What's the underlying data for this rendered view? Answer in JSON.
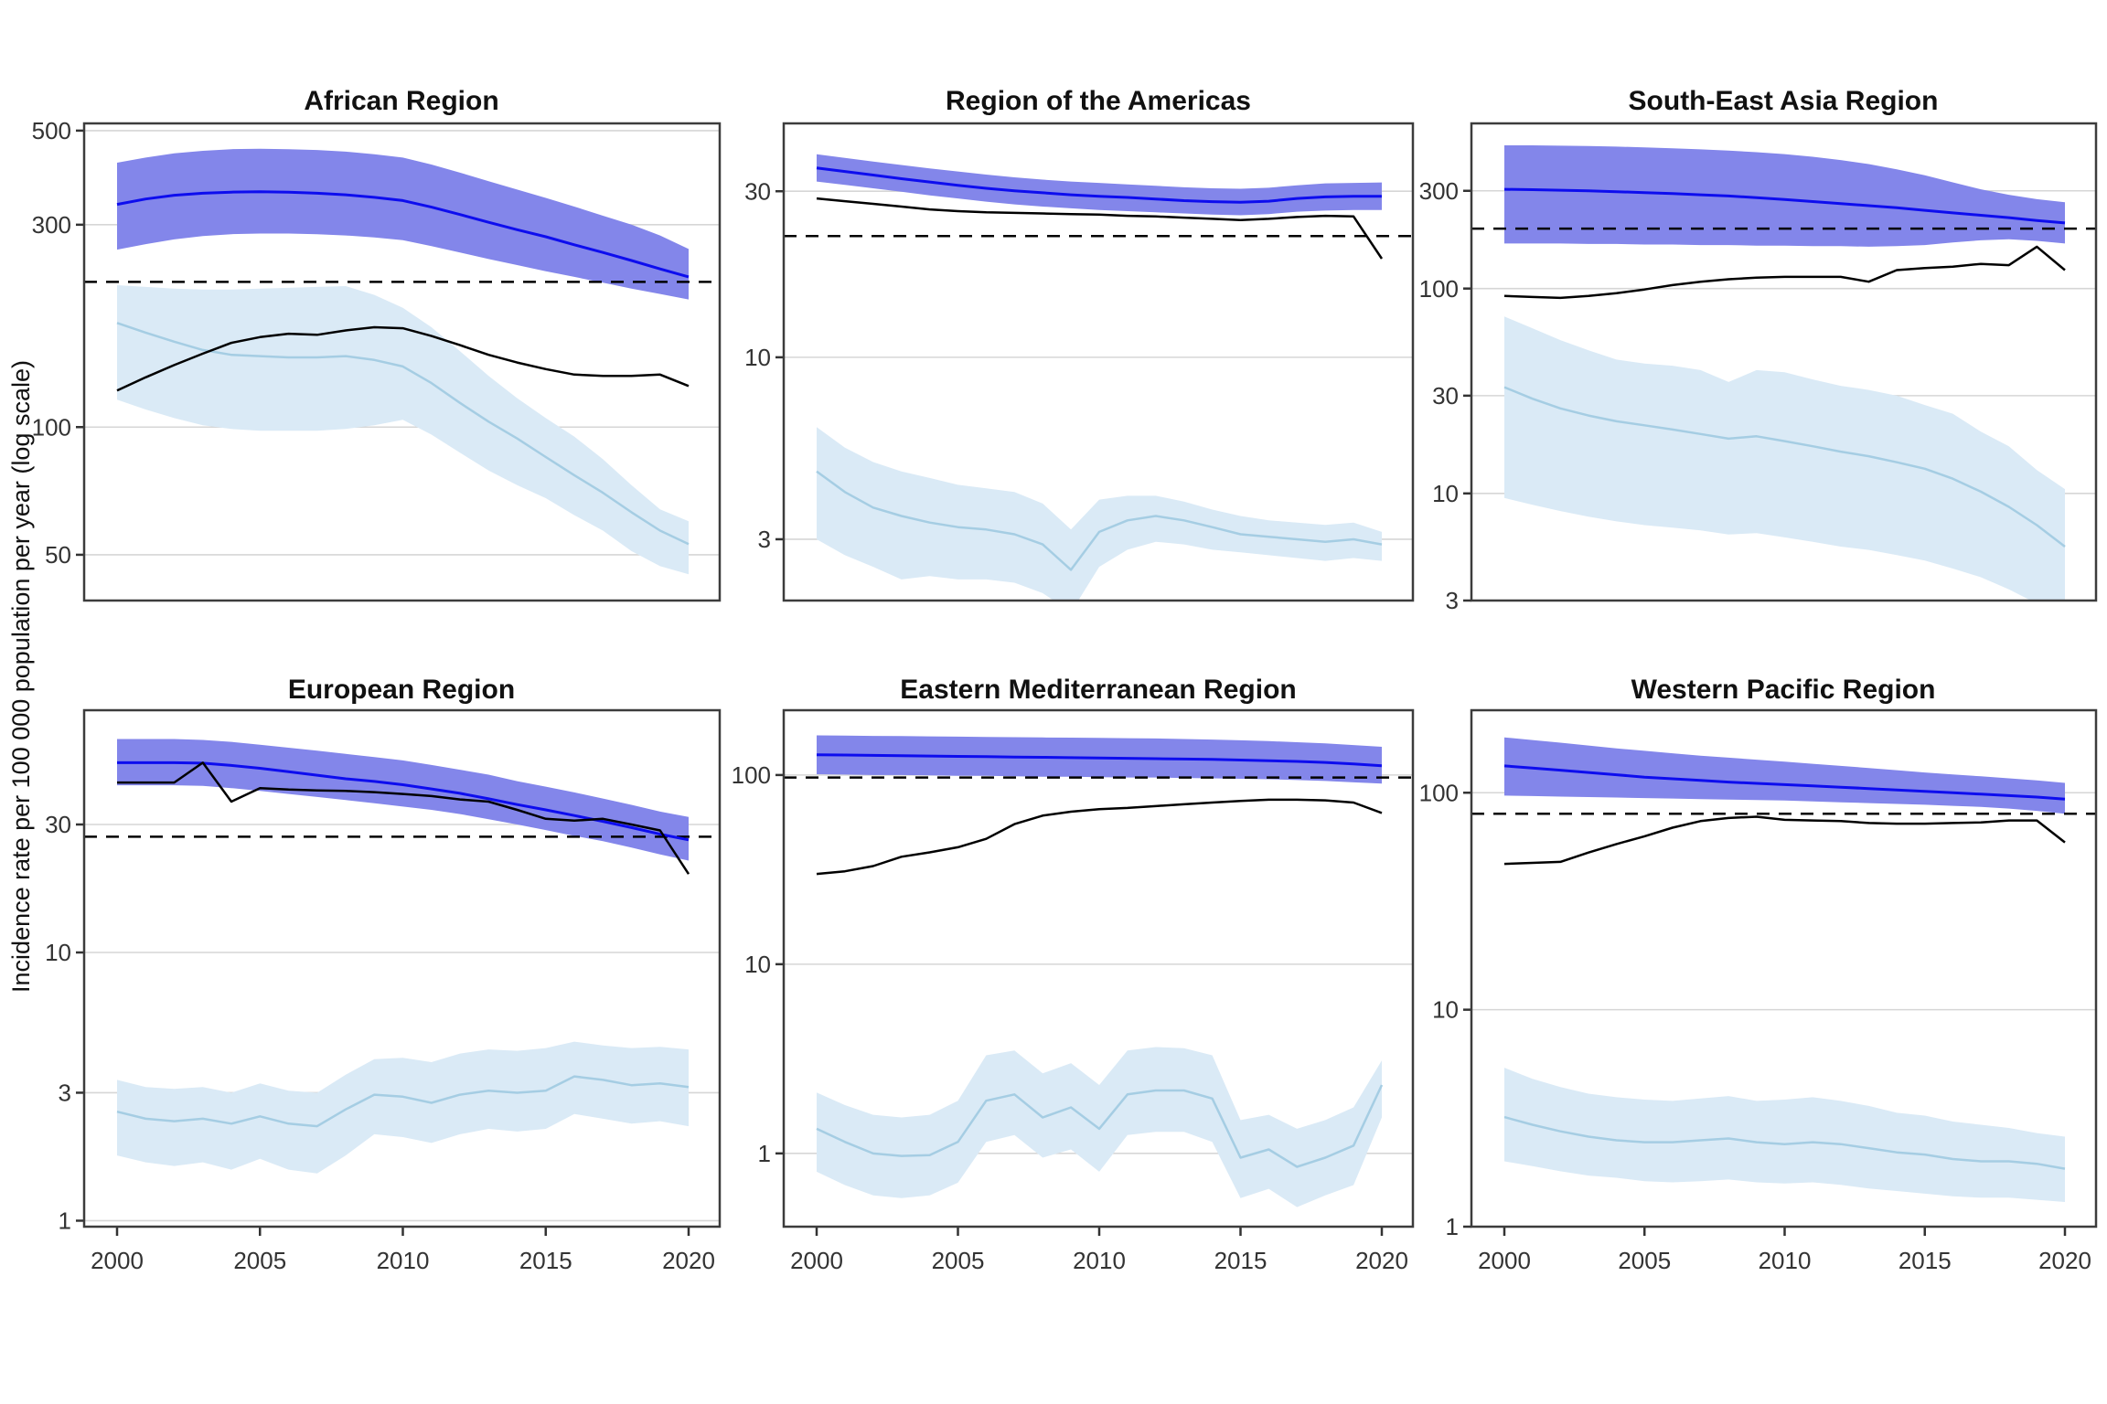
{
  "figure": {
    "y_axis_label": "Incidence rate per 100 000 population per year (log scale)",
    "x_tick_labels": [
      "2000",
      "2005",
      "2010",
      "2015",
      "2020"
    ],
    "years": [
      2000,
      2001,
      2002,
      2003,
      2004,
      2005,
      2006,
      2007,
      2008,
      2009,
      2010,
      2011,
      2012,
      2013,
      2014,
      2015,
      2016,
      2017,
      2018,
      2019,
      2020
    ],
    "colors": {
      "blue_line": "#0d0dee",
      "blue_ribbon": "#8386ea",
      "light_blue_line": "#a5cde3",
      "light_blue_ribbon": "#daeaf6",
      "black_line": "#000000",
      "dashed_line": "#000000",
      "gridline": "#d6d6d6",
      "panel_border": "#3c3c3c",
      "background": "#ffffff"
    }
  },
  "chart_data": [
    {
      "type": "line",
      "title": "African Region",
      "col": 0,
      "row": 0,
      "ylim": [
        39,
        520
      ],
      "yticks": [
        500,
        300,
        100,
        50
      ],
      "dashed_reference": 220,
      "series": {
        "blue": {
          "values": [
            335,
            345,
            352,
            356,
            358,
            359,
            358,
            356,
            353,
            348,
            342,
            330,
            317,
            304,
            292,
            281,
            269,
            258,
            247,
            236,
            226
          ],
          "hi": [
            420,
            432,
            442,
            448,
            452,
            453,
            452,
            450,
            446,
            440,
            432,
            416,
            398,
            380,
            363,
            347,
            331,
            315,
            300,
            283,
            263
          ],
          "lo": [
            262,
            270,
            277,
            282,
            285,
            286,
            286,
            285,
            283,
            280,
            276,
            267,
            258,
            249,
            241,
            233,
            226,
            219,
            212,
            206,
            200
          ]
        },
        "black": {
          "values": [
            122,
            131,
            140,
            149,
            158,
            163,
            166,
            165,
            169,
            172,
            171,
            164,
            156,
            148,
            142,
            137,
            133,
            132,
            132,
            133,
            125
          ]
        },
        "light_blue": {
          "values": [
            176,
            167,
            159,
            152,
            148,
            147,
            146,
            146,
            147,
            144,
            139,
            127,
            114,
            103,
            94,
            85,
            77,
            70,
            63,
            57,
            53
          ],
          "hi": [
            216,
            214,
            212,
            211,
            211,
            212,
            213,
            214,
            215,
            205,
            191,
            172,
            151,
            132,
            117,
            105,
            95,
            84,
            73,
            64,
            60
          ],
          "lo": [
            116,
            110,
            105,
            101,
            99,
            98,
            98,
            98,
            99,
            101,
            104,
            96,
            87,
            79,
            73,
            68,
            62,
            57,
            51,
            47,
            45
          ]
        }
      }
    },
    {
      "type": "line",
      "title": "Region of the Americas",
      "col": 1,
      "row": 0,
      "ylim": [
        2,
        47
      ],
      "yticks": [
        30,
        10,
        3
      ],
      "dashed_reference": 22.3,
      "series": {
        "blue": {
          "values": [
            35,
            34.2,
            33.4,
            32.6,
            31.9,
            31.2,
            30.6,
            30.1,
            29.7,
            29.3,
            29,
            28.8,
            28.5,
            28.2,
            28,
            27.9,
            28.1,
            28.6,
            28.9,
            29,
            29
          ],
          "hi": [
            38.3,
            37.4,
            36.5,
            35.7,
            34.9,
            34.2,
            33.5,
            32.9,
            32.4,
            32,
            31.7,
            31.4,
            31.1,
            30.8,
            30.6,
            30.5,
            30.7,
            31.2,
            31.6,
            31.7,
            31.8
          ],
          "lo": [
            32,
            31.3,
            30.6,
            29.9,
            29.2,
            28.6,
            28,
            27.5,
            27.1,
            26.8,
            26.5,
            26.3,
            26.1,
            25.9,
            25.7,
            25.6,
            25.8,
            26.2,
            26.4,
            26.5,
            26.5
          ]
        },
        "black": {
          "values": [
            28.6,
            28.1,
            27.6,
            27.1,
            26.6,
            26.3,
            26.1,
            26,
            25.9,
            25.8,
            25.7,
            25.5,
            25.4,
            25.2,
            25,
            24.8,
            25,
            25.3,
            25.5,
            25.4,
            19.2
          ]
        },
        "light_blue": {
          "values": [
            4.7,
            4.1,
            3.7,
            3.5,
            3.35,
            3.25,
            3.2,
            3.1,
            2.9,
            2.45,
            3.15,
            3.4,
            3.5,
            3.4,
            3.25,
            3.1,
            3.05,
            3,
            2.95,
            3,
            2.9
          ],
          "hi": [
            6.3,
            5.5,
            5,
            4.7,
            4.5,
            4.3,
            4.2,
            4.1,
            3.8,
            3.2,
            3.9,
            4,
            4,
            3.85,
            3.65,
            3.5,
            3.4,
            3.35,
            3.3,
            3.35,
            3.15
          ],
          "lo": [
            3,
            2.7,
            2.5,
            2.3,
            2.35,
            2.3,
            2.3,
            2.25,
            2.1,
            1.85,
            2.5,
            2.8,
            2.95,
            2.9,
            2.8,
            2.75,
            2.7,
            2.65,
            2.6,
            2.65,
            2.6
          ]
        }
      }
    },
    {
      "type": "line",
      "title": "South-East Asia Region",
      "col": 2,
      "row": 0,
      "ylim": [
        3,
        640
      ],
      "yticks": [
        300,
        100,
        30,
        10,
        3
      ],
      "dashed_reference": 196,
      "series": {
        "blue": {
          "values": [
            305,
            304,
            302,
            300,
            297,
            294,
            291,
            287,
            283,
            278,
            272,
            266,
            260,
            254,
            248,
            241,
            234,
            228,
            222,
            215,
            209
          ],
          "hi": [
            500,
            500,
            498,
            496,
            493,
            489,
            484,
            478,
            471,
            463,
            453,
            440,
            424,
            405,
            382,
            357,
            330,
            305,
            287,
            273,
            264
          ],
          "lo": [
            166,
            166,
            166,
            165,
            165,
            164,
            164,
            163,
            163,
            162,
            162,
            161,
            161,
            160,
            161,
            163,
            168,
            172,
            174,
            171,
            166
          ]
        },
        "black": {
          "values": [
            92,
            91,
            90,
            92,
            95,
            99,
            104,
            108,
            111,
            113,
            114,
            114,
            114,
            108,
            123,
            126,
            128,
            132,
            130,
            160,
            123
          ]
        },
        "light_blue": {
          "values": [
            33,
            29,
            26,
            24,
            22.5,
            21.5,
            20.5,
            19.5,
            18.5,
            19,
            18,
            17,
            16,
            15.2,
            14.2,
            13.2,
            11.8,
            10.2,
            8.6,
            7,
            5.5
          ],
          "hi": [
            73,
            64,
            56,
            50,
            45,
            43,
            42,
            40,
            35,
            40,
            39,
            36,
            33.5,
            32,
            30,
            27,
            24.5,
            20,
            17,
            13,
            10.5
          ],
          "lo": [
            9.5,
            8.8,
            8.2,
            7.7,
            7.3,
            7,
            6.8,
            6.6,
            6.3,
            6.4,
            6.1,
            5.8,
            5.5,
            5.3,
            5,
            4.7,
            4.3,
            3.9,
            3.4,
            2.9,
            2.5
          ]
        }
      }
    },
    {
      "type": "line",
      "title": "European Region",
      "col": 0,
      "row": 1,
      "ylim": [
        0.95,
        80
      ],
      "yticks": [
        30,
        10,
        3,
        1
      ],
      "dashed_reference": 27,
      "series": {
        "blue": {
          "values": [
            51,
            51,
            51,
            50.8,
            49.8,
            48.6,
            47.2,
            45.8,
            44.4,
            43.4,
            42.2,
            40.7,
            39.2,
            37.4,
            35.6,
            34,
            32.4,
            30.8,
            29.2,
            27.6,
            26.3
          ],
          "hi": [
            62.5,
            62.5,
            62.5,
            62,
            61,
            59.5,
            58,
            56.5,
            55,
            53.5,
            52,
            50,
            48,
            46,
            43.5,
            41.5,
            39.5,
            37.5,
            35.5,
            33.5,
            32
          ],
          "lo": [
            42,
            42,
            42,
            41.8,
            41,
            40,
            39,
            38,
            37,
            36,
            35,
            34,
            32.8,
            31.4,
            30,
            28.6,
            27.2,
            26,
            24.6,
            23.2,
            22
          ]
        },
        "black": {
          "values": [
            43,
            43,
            43,
            51,
            36.5,
            41,
            40.5,
            40.2,
            40,
            39.6,
            39,
            38.3,
            37.2,
            36.5,
            34,
            31.5,
            31,
            31.5,
            30,
            28.5,
            19.6
          ]
        },
        "light_blue": {
          "values": [
            2.55,
            2.4,
            2.35,
            2.4,
            2.3,
            2.45,
            2.3,
            2.25,
            2.6,
            2.95,
            2.9,
            2.75,
            2.95,
            3.05,
            3,
            3.05,
            3.45,
            3.35,
            3.2,
            3.25,
            3.15
          ],
          "hi": [
            3.35,
            3.15,
            3.1,
            3.15,
            3,
            3.25,
            3.05,
            3,
            3.5,
            4,
            4.05,
            3.9,
            4.2,
            4.35,
            4.3,
            4.4,
            4.65,
            4.5,
            4.4,
            4.45,
            4.35
          ],
          "lo": [
            1.75,
            1.65,
            1.6,
            1.65,
            1.55,
            1.7,
            1.55,
            1.5,
            1.75,
            2.1,
            2.05,
            1.95,
            2.1,
            2.2,
            2.15,
            2.2,
            2.5,
            2.4,
            2.3,
            2.35,
            2.25
          ]
        }
      }
    },
    {
      "type": "line",
      "title": "Eastern Mediterranean Region",
      "col": 1,
      "row": 1,
      "ylim": [
        0.41,
        220
      ],
      "yticks": [
        100,
        10,
        1
      ],
      "dashed_reference": 97,
      "series": {
        "blue": {
          "values": [
            128,
            127.5,
            127,
            126.5,
            126,
            125.5,
            125,
            124.5,
            124,
            123.5,
            123,
            122.5,
            122,
            121.5,
            121,
            120,
            119,
            118,
            116.5,
            114.5,
            112
          ],
          "hi": [
            162,
            161.5,
            161,
            160.5,
            160,
            159.5,
            159,
            158.5,
            158,
            157.5,
            157,
            156.5,
            156,
            155,
            154,
            152.5,
            151,
            149,
            147,
            144,
            141
          ],
          "lo": [
            101,
            100.5,
            100,
            100,
            99.5,
            99,
            99,
            98.5,
            98,
            98,
            97.5,
            97,
            97,
            96.5,
            96,
            95.5,
            95,
            94,
            93,
            91.5,
            90
          ]
        },
        "black": {
          "values": [
            30,
            31,
            33,
            37,
            39,
            41.5,
            46,
            55,
            61,
            64,
            66,
            67,
            68.5,
            70,
            71.5,
            73,
            74,
            74,
            73.5,
            71.5,
            63
          ]
        },
        "light_blue": {
          "values": [
            1.35,
            1.15,
            1,
            0.97,
            0.98,
            1.15,
            1.9,
            2.05,
            1.55,
            1.75,
            1.35,
            2.05,
            2.15,
            2.15,
            1.95,
            0.95,
            1.05,
            0.85,
            0.95,
            1.1,
            2.3
          ],
          "hi": [
            2.1,
            1.8,
            1.6,
            1.55,
            1.6,
            1.9,
            3.3,
            3.5,
            2.65,
            3,
            2.3,
            3.5,
            3.65,
            3.6,
            3.3,
            1.5,
            1.6,
            1.35,
            1.5,
            1.75,
            3.1
          ],
          "lo": [
            0.8,
            0.68,
            0.6,
            0.58,
            0.6,
            0.7,
            1.15,
            1.25,
            0.95,
            1.05,
            0.8,
            1.25,
            1.3,
            1.3,
            1.15,
            0.58,
            0.65,
            0.52,
            0.6,
            0.68,
            1.55
          ]
        }
      }
    },
    {
      "type": "line",
      "title": "Western Pacific Region",
      "col": 2,
      "row": 1,
      "ylim": [
        1,
        240
      ],
      "yticks": [
        100,
        10,
        1
      ],
      "dashed_reference": 80,
      "series": {
        "blue": {
          "values": [
            133,
            130,
            127,
            124,
            121,
            118,
            116,
            114,
            112,
            110.5,
            109,
            107.5,
            106,
            104.5,
            103,
            101.5,
            100,
            98.5,
            97,
            95.5,
            93.5
          ],
          "hi": [
            180,
            175,
            170,
            165,
            160,
            156,
            152,
            148,
            145,
            142,
            139,
            136,
            133,
            130,
            127,
            124,
            121.5,
            119,
            116.5,
            114,
            111
          ],
          "lo": [
            97,
            96.5,
            96,
            95.5,
            95,
            94.5,
            94,
            93.5,
            93,
            92.5,
            92,
            91.2,
            90.4,
            89.6,
            88.8,
            88,
            87,
            86,
            84.5,
            82.5,
            80
          ]
        },
        "black": {
          "values": [
            47,
            47.5,
            48,
            53,
            58,
            63,
            69,
            74,
            76.5,
            77.5,
            75,
            74.5,
            74,
            72.5,
            72,
            72,
            72.5,
            73,
            74.5,
            74.5,
            59
          ]
        },
        "light_blue": {
          "values": [
            3.2,
            2.95,
            2.75,
            2.6,
            2.5,
            2.45,
            2.45,
            2.5,
            2.55,
            2.45,
            2.4,
            2.45,
            2.4,
            2.3,
            2.2,
            2.15,
            2.05,
            2,
            2,
            1.95,
            1.85
          ],
          "hi": [
            5.4,
            4.8,
            4.4,
            4.1,
            3.95,
            3.85,
            3.8,
            3.9,
            4,
            3.8,
            3.85,
            3.95,
            3.8,
            3.6,
            3.35,
            3.25,
            3.05,
            2.95,
            2.85,
            2.7,
            2.6
          ],
          "lo": [
            2,
            1.9,
            1.8,
            1.72,
            1.68,
            1.62,
            1.6,
            1.62,
            1.65,
            1.6,
            1.58,
            1.6,
            1.56,
            1.5,
            1.46,
            1.42,
            1.38,
            1.36,
            1.36,
            1.33,
            1.3
          ]
        }
      }
    }
  ]
}
